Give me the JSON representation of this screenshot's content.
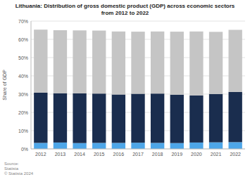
{
  "chart_data": {
    "type": "bar",
    "stacked": true,
    "title": "Lithuania: Distribution of gross domestic product (GDP) across economic sectors",
    "subtitle": "from 2012 to 2022",
    "y_label": "Share of GDP",
    "categories": [
      "2012",
      "2013",
      "2014",
      "2015",
      "2016",
      "2017",
      "2018",
      "2019",
      "2020",
      "2021",
      "2022"
    ],
    "series": [
      {
        "color": "#4da6e8",
        "values": [
          3.3,
          3.5,
          3.2,
          3.3,
          3.3,
          3.4,
          3.3,
          3.2,
          3.5,
          3.6,
          3.7
        ]
      },
      {
        "color": "#1a2d4e",
        "values": [
          27.5,
          27.0,
          27.2,
          27.0,
          26.5,
          26.8,
          27.0,
          26.5,
          25.8,
          26.5,
          27.5
        ]
      },
      {
        "color": "#c5c5c5",
        "values": [
          34.5,
          34.5,
          34.5,
          34.5,
          34.5,
          34.0,
          34.0,
          34.5,
          35.0,
          34.0,
          34.0
        ]
      }
    ],
    "ylim": [
      0,
      70
    ],
    "yticks": [
      {
        "value": 0,
        "label": "0%"
      },
      {
        "value": 10,
        "label": "10%"
      },
      {
        "value": 20,
        "label": "20%"
      },
      {
        "value": 30,
        "label": "30%"
      },
      {
        "value": 40,
        "label": "40%"
      },
      {
        "value": 50,
        "label": "50%"
      },
      {
        "value": 60,
        "label": "60%"
      },
      {
        "value": 70,
        "label": "70%"
      }
    ],
    "grid": true,
    "annotations": [
      "Source:\nStatista\n© Statista 2024"
    ]
  }
}
